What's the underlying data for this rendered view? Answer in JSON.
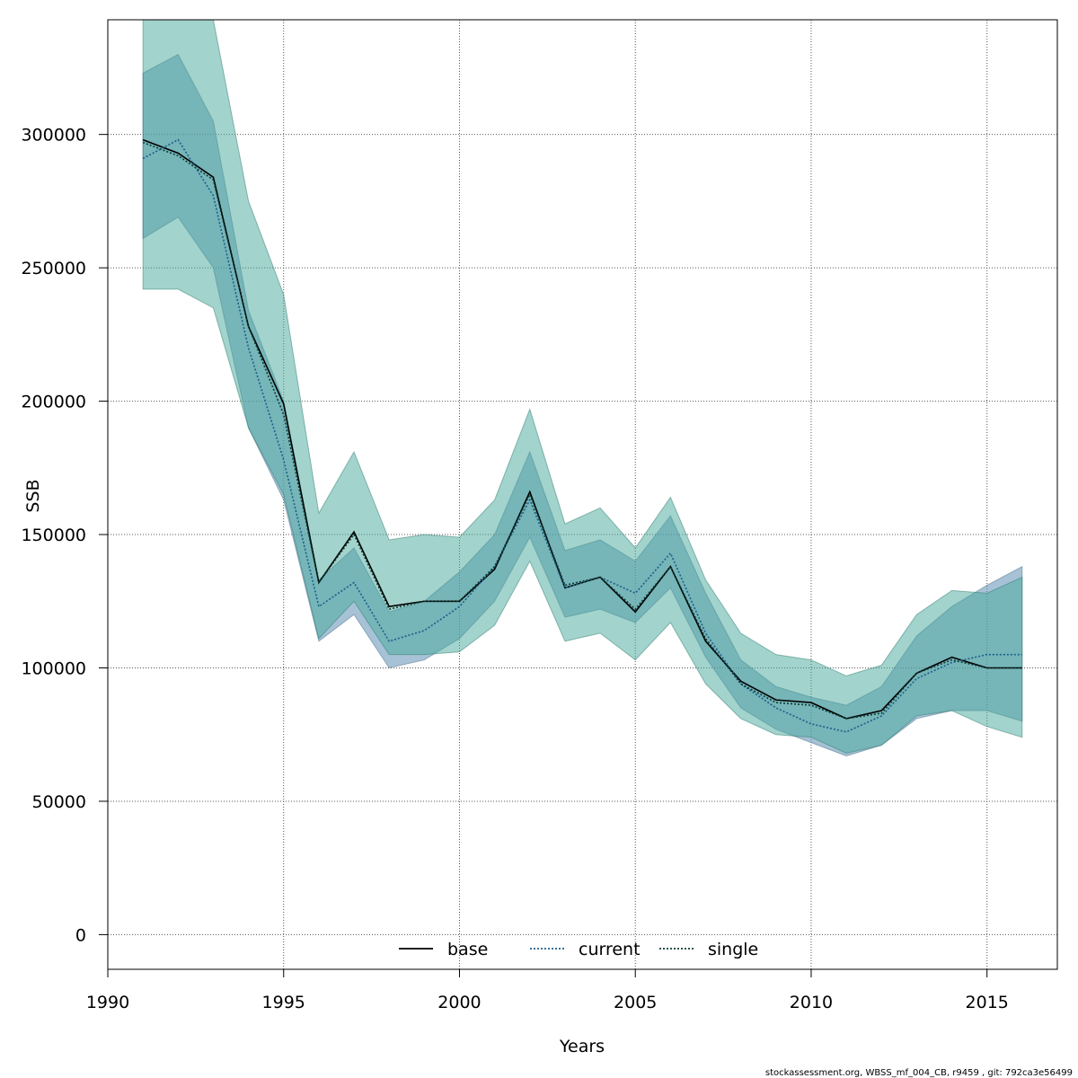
{
  "chart_data": {
    "type": "line",
    "title": "",
    "xlabel": "Years",
    "ylabel": "SSB",
    "xlim": [
      1990,
      2017
    ],
    "ylim": [
      -13000,
      343000
    ],
    "xticks": [
      1990,
      1995,
      2000,
      2005,
      2010,
      2015
    ],
    "yticks": [
      0,
      50000,
      100000,
      150000,
      200000,
      250000,
      300000
    ],
    "grid": true,
    "legend": {
      "position": "bottom-center",
      "entries": [
        "base",
        "current",
        "single"
      ]
    },
    "x": [
      1991,
      1992,
      1993,
      1994,
      1995,
      1996,
      1997,
      1998,
      1999,
      2000,
      2001,
      2002,
      2003,
      2004,
      2005,
      2006,
      2007,
      2008,
      2009,
      2010,
      2011,
      2012,
      2013,
      2014,
      2015,
      2016
    ],
    "series": [
      {
        "name": "base",
        "line_style": "solid",
        "color": "#000000",
        "values": [
          298000,
          293000,
          284000,
          228000,
          199000,
          132000,
          151000,
          123000,
          125000,
          125000,
          137000,
          166000,
          130000,
          134000,
          121000,
          138000,
          110000,
          95000,
          88000,
          87000,
          81000,
          84000,
          98000,
          104000,
          100000,
          100000
        ],
        "lower": [
          261000,
          269000,
          250000,
          190000,
          163000,
          110000,
          120000,
          100000,
          103000,
          111000,
          125000,
          149000,
          119000,
          122000,
          117000,
          130000,
          104000,
          85000,
          77000,
          72000,
          67000,
          71000,
          81000,
          84000,
          84000,
          80000
        ],
        "upper": [
          323000,
          330000,
          305000,
          234000,
          200000,
          133000,
          145000,
          121000,
          125000,
          136000,
          150000,
          181000,
          144000,
          148000,
          140000,
          157000,
          128000,
          103000,
          93000,
          89000,
          86000,
          93000,
          112000,
          123000,
          131000,
          138000
        ]
      },
      {
        "name": "current",
        "line_style": "dotted",
        "color": "#1b5f8a",
        "values": [
          291000,
          298000,
          277000,
          220000,
          178000,
          123000,
          132000,
          110000,
          114000,
          123000,
          138000,
          163000,
          130000,
          134000,
          128000,
          143000,
          113000,
          94000,
          85000,
          79000,
          76000,
          82000,
          96000,
          102000,
          105000,
          105000
        ]
      },
      {
        "name": "single",
        "line_style": "dotted",
        "color": "#0d3b36",
        "values": [
          297000,
          292000,
          283000,
          228000,
          195000,
          132000,
          150000,
          122000,
          125000,
          125000,
          138000,
          165000,
          131000,
          134000,
          122000,
          138000,
          111000,
          94000,
          87000,
          86000,
          81000,
          83000,
          98000,
          103000,
          100000,
          100000
        ],
        "lower": [
          242000,
          242000,
          235000,
          190000,
          165000,
          111000,
          125000,
          105000,
          105000,
          106000,
          116000,
          140000,
          110000,
          113000,
          103000,
          117000,
          94000,
          81000,
          75000,
          74000,
          68000,
          71000,
          82000,
          84000,
          78000,
          74000
        ],
        "upper": [
          343000,
          343000,
          343000,
          275000,
          240000,
          158000,
          181000,
          148000,
          150000,
          149000,
          163000,
          197000,
          154000,
          160000,
          145000,
          164000,
          133000,
          113000,
          105000,
          103000,
          97000,
          101000,
          120000,
          129000,
          128000,
          134000
        ]
      }
    ]
  },
  "footer": "stockassessment.org, WBSS_mf_004_CB, r9459 , git: 792ca3e56499",
  "colors": {
    "band_base": "#5f8fb5",
    "band_single": "#45a89a",
    "grid": "#555555"
  }
}
